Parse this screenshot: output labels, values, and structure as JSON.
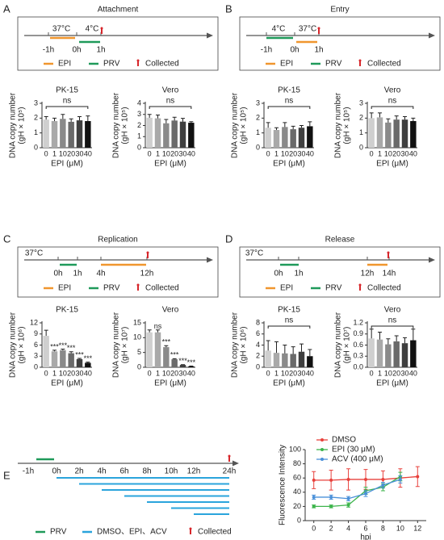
{
  "panels": [
    {
      "letter": "A",
      "title": "Attachment",
      "timeline": [
        "37°C",
        "4°C",
        "-1h",
        "0h",
        "1h"
      ],
      "legend": [
        "EPI",
        "PRV",
        "Collected"
      ]
    },
    {
      "letter": "B",
      "title": "Entry",
      "timeline": [
        "4°C",
        "37°C",
        "-1h",
        "0h",
        "1h"
      ],
      "legend": [
        "EPI",
        "PRV",
        "Collected"
      ]
    },
    {
      "letter": "C",
      "title": "Replication",
      "timeline": [
        "37°C",
        "0h",
        "1h",
        "4h",
        "12h"
      ],
      "legend": [
        "EPI",
        "PRV",
        "Collected"
      ]
    },
    {
      "letter": "D",
      "title": "Release",
      "timeline": [
        "37°C",
        "0h",
        "1h",
        "12h",
        "14h"
      ],
      "legend": [
        "EPI",
        "PRV",
        "Collected"
      ]
    },
    {
      "letter": "E",
      "timeline": [
        "-1h",
        "0h",
        "2h",
        "4h",
        "6h",
        "8h",
        "10h",
        "12h",
        "24h"
      ],
      "legend": [
        "PRV",
        "DMSO、EPI、ACV",
        "Collected"
      ]
    }
  ],
  "chart_data": [
    {
      "type": "bar",
      "title": "PK-15",
      "ylabel": [
        "DNA copy number",
        "(gH × 10⁵)"
      ],
      "xlabel": "EPI (μM)",
      "categories": [
        "0",
        "1",
        "10",
        "20",
        "30",
        "40"
      ],
      "values": [
        1.9,
        1.8,
        1.95,
        1.75,
        1.85,
        1.8
      ],
      "errors": [
        0.2,
        0.2,
        0.3,
        0.2,
        0.25,
        0.35
      ],
      "colors": [
        "#cfcfcf",
        "#a9a9a9",
        "#8a8a8a",
        "#6a6a6a",
        "#3f3f3f",
        "#111111"
      ],
      "ylim": [
        0,
        3
      ],
      "yticks": [
        0,
        1,
        2,
        3
      ],
      "annotation": "ns"
    },
    {
      "type": "bar",
      "title": "Vero",
      "ylabel": [
        "DNA copy number",
        "(gH × 10⁵)"
      ],
      "xlabel": "EPI (μM)",
      "categories": [
        "0",
        "1",
        "10",
        "20",
        "30",
        "40"
      ],
      "values": [
        2.7,
        2.65,
        2.2,
        2.45,
        2.35,
        2.25
      ],
      "errors": [
        0.3,
        0.3,
        0.35,
        0.3,
        0.3,
        0.1
      ],
      "colors": [
        "#cfcfcf",
        "#a9a9a9",
        "#8a8a8a",
        "#6a6a6a",
        "#3f3f3f",
        "#111111"
      ],
      "ylim": [
        0,
        4
      ],
      "yticks": [
        0,
        1,
        2,
        3,
        4
      ],
      "annotation": "ns"
    },
    {
      "type": "bar",
      "title": "PK-15",
      "ylabel": [
        "DNA copy number",
        "(gH × 10⁵)"
      ],
      "xlabel": "EPI (μM)",
      "categories": [
        "0",
        "1",
        "10",
        "20",
        "30",
        "40"
      ],
      "values": [
        1.35,
        1.2,
        1.4,
        1.25,
        1.35,
        1.45
      ],
      "errors": [
        0.35,
        0.15,
        0.3,
        0.2,
        0.15,
        0.3
      ],
      "colors": [
        "#cfcfcf",
        "#a9a9a9",
        "#8a8a8a",
        "#6a6a6a",
        "#3f3f3f",
        "#111111"
      ],
      "ylim": [
        0,
        3
      ],
      "yticks": [
        0,
        1,
        2,
        3
      ],
      "annotation": "ns"
    },
    {
      "type": "bar",
      "title": "Vero",
      "ylabel": [
        "DNA copy number",
        "(gH × 10⁵)"
      ],
      "xlabel": "EPI (μM)",
      "categories": [
        "0",
        "1",
        "10",
        "20",
        "30",
        "40"
      ],
      "values": [
        2.0,
        2.05,
        1.7,
        1.9,
        1.9,
        1.8
      ],
      "errors": [
        0.35,
        0.3,
        0.25,
        0.25,
        0.2,
        0.2
      ],
      "colors": [
        "#cfcfcf",
        "#a9a9a9",
        "#8a8a8a",
        "#6a6a6a",
        "#3f3f3f",
        "#111111"
      ],
      "ylim": [
        0,
        3
      ],
      "yticks": [
        0,
        1,
        2,
        3
      ],
      "annotation": "ns"
    },
    {
      "type": "bar",
      "title": "PK-15",
      "ylabel": [
        "DNA copy number",
        "(gH × 10⁶)"
      ],
      "xlabel": "EPI (μM)",
      "categories": [
        "0",
        "1",
        "10",
        "20",
        "30",
        "40"
      ],
      "values": [
        8.5,
        4.3,
        4.6,
        3.8,
        2.2,
        1.2
      ],
      "errors": [
        1.5,
        0.3,
        0.3,
        0.4,
        0.2,
        0.2
      ],
      "colors": [
        "#cfcfcf",
        "#a9a9a9",
        "#8a8a8a",
        "#6a6a6a",
        "#3f3f3f",
        "#111111"
      ],
      "ylim": [
        0,
        12
      ],
      "yticks": [
        0,
        3,
        6,
        9,
        12
      ],
      "sig_labels": [
        null,
        "***",
        "***",
        "***",
        "***",
        "***"
      ]
    },
    {
      "type": "bar",
      "title": "Vero",
      "ylabel": [
        "DNA copy number",
        "(gH × 10⁷)"
      ],
      "xlabel": "EPI (μM)",
      "categories": [
        "0",
        "1",
        "10",
        "20",
        "30",
        "40"
      ],
      "values": [
        11.8,
        11.8,
        6.8,
        2.7,
        0.8,
        0.3
      ],
      "errors": [
        0.8,
        0.8,
        0.5,
        0.2,
        0.1,
        0.1
      ],
      "colors": [
        "#cfcfcf",
        "#a9a9a9",
        "#8a8a8a",
        "#6a6a6a",
        "#3f3f3f",
        "#111111"
      ],
      "ylim": [
        0,
        15
      ],
      "yticks": [
        0,
        5,
        10,
        15
      ],
      "sig_labels": [
        null,
        "ns",
        "***",
        "***",
        "***",
        "***"
      ]
    },
    {
      "type": "bar",
      "title": "PK-15",
      "ylabel": [
        "DNA copy number",
        "(gH × 10⁶)"
      ],
      "xlabel": "EPI (μM)",
      "categories": [
        "0",
        "1",
        "10",
        "20",
        "30",
        "40"
      ],
      "values": [
        3.0,
        2.6,
        2.5,
        2.4,
        2.8,
        2.0
      ],
      "errors": [
        1.8,
        2.0,
        1.5,
        1.3,
        1.4,
        1.2
      ],
      "colors": [
        "#cfcfcf",
        "#a9a9a9",
        "#8a8a8a",
        "#6a6a6a",
        "#3f3f3f",
        "#111111"
      ],
      "ylim": [
        0,
        8
      ],
      "yticks": [
        0,
        2,
        4,
        6,
        8
      ],
      "annotation": "ns"
    },
    {
      "type": "bar",
      "title": "Vero",
      "ylabel": [
        "DNA copy number",
        "(gH × 10⁷)"
      ],
      "xlabel": "EPI (μM)",
      "categories": [
        "0",
        "1",
        "10",
        "20",
        "30",
        "40"
      ],
      "values": [
        0.78,
        0.75,
        0.62,
        0.7,
        0.65,
        0.73
      ],
      "errors": [
        0.25,
        0.2,
        0.15,
        0.15,
        0.15,
        0.3
      ],
      "colors": [
        "#cfcfcf",
        "#a9a9a9",
        "#8a8a8a",
        "#6a6a6a",
        "#3f3f3f",
        "#111111"
      ],
      "ylim": [
        0,
        1.2
      ],
      "yticks": [
        {
          "value": 0,
          "label": "0.0"
        },
        0.3,
        0.6,
        0.9,
        1.2
      ],
      "annotation": "ns"
    },
    {
      "type": "line",
      "ylabel": "Fluorescence Intensity",
      "xlabel": "hpi",
      "x": [
        0,
        2,
        4,
        6,
        8,
        10,
        12
      ],
      "xlim": [
        -1,
        13
      ],
      "xticks": [
        0,
        2,
        4,
        6,
        8,
        10,
        12
      ],
      "ylim": [
        0,
        100
      ],
      "yticks": [
        0,
        20,
        40,
        60,
        80,
        100
      ],
      "series": [
        {
          "name": "DMSO",
          "color": "#e8413c",
          "values": [
            57,
            57,
            58,
            58,
            58,
            60,
            62
          ],
          "errors": [
            12,
            14,
            15,
            14,
            12,
            13,
            14
          ]
        },
        {
          "name": "EPI (30 μM)",
          "color": "#3cb44b",
          "values": [
            20,
            20,
            22,
            42,
            47,
            62,
            null
          ],
          "errors": [
            2,
            2,
            3,
            5,
            5,
            6,
            null
          ]
        },
        {
          "name": "ACV (400 μM)",
          "color": "#4a90d9",
          "values": [
            33,
            33,
            31,
            38,
            50,
            58,
            null
          ],
          "errors": [
            3,
            3,
            3,
            4,
            4,
            5,
            null
          ]
        }
      ]
    }
  ]
}
